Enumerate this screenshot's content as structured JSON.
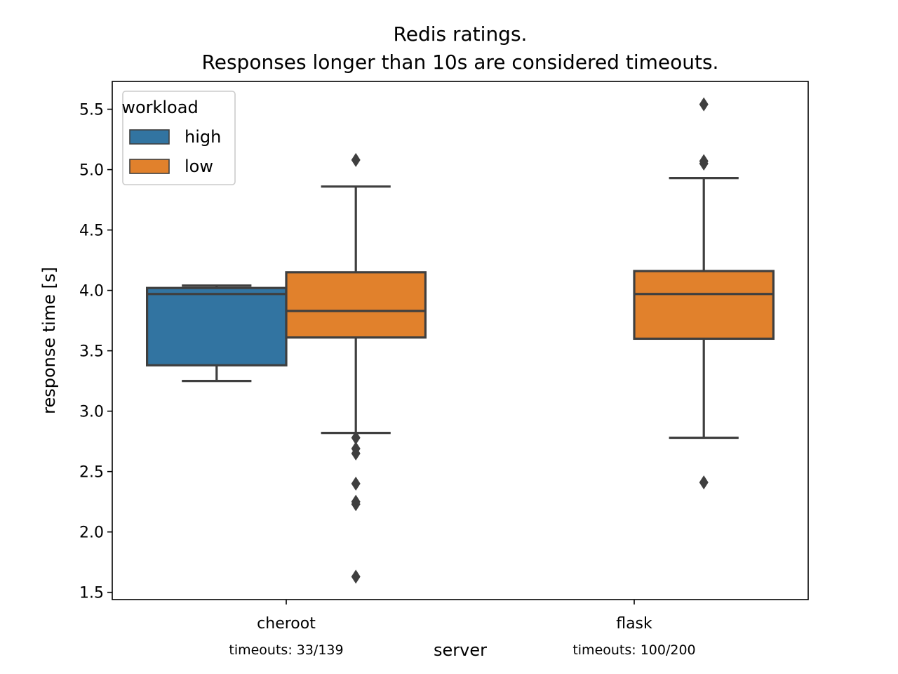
{
  "chart_data": {
    "type": "box",
    "title_lines": [
      "Redis ratings.",
      "Responses longer than 10s are considered timeouts."
    ],
    "xlabel": "server",
    "ylabel": "response time [s]",
    "ylim": [
      1.44,
      5.73
    ],
    "yticks": [
      1.5,
      2.0,
      2.5,
      3.0,
      3.5,
      4.0,
      4.5,
      5.0,
      5.5
    ],
    "categories": [
      "cheroot",
      "flask"
    ],
    "category_notes": [
      "timeouts: 33/139",
      "timeouts: 100/200"
    ],
    "grid": false,
    "legend": {
      "title": "workload",
      "placement": "top-left",
      "entries": [
        {
          "name": "high",
          "color": "#3274a1"
        },
        {
          "name": "low",
          "color": "#e1812c"
        }
      ]
    },
    "series": [
      {
        "name": "high",
        "color": "#3274a1",
        "boxes": [
          {
            "category": "cheroot",
            "whisker_low": 3.25,
            "q1": 3.38,
            "median": 3.97,
            "q3": 4.02,
            "whisker_high": 4.04,
            "outliers": []
          },
          null
        ]
      },
      {
        "name": "low",
        "color": "#e1812c",
        "boxes": [
          {
            "category": "cheroot",
            "whisker_low": 2.82,
            "q1": 3.61,
            "median": 3.83,
            "q3": 4.15,
            "whisker_high": 4.86,
            "outliers": [
              5.08,
              2.78,
              2.69,
              2.65,
              2.4,
              2.25,
              2.23,
              1.63
            ]
          },
          {
            "category": "flask",
            "whisker_low": 2.78,
            "q1": 3.6,
            "median": 3.97,
            "q3": 4.16,
            "whisker_high": 4.93,
            "outliers": [
              5.54,
              5.07,
              5.05,
              2.41
            ]
          }
        ]
      }
    ]
  }
}
